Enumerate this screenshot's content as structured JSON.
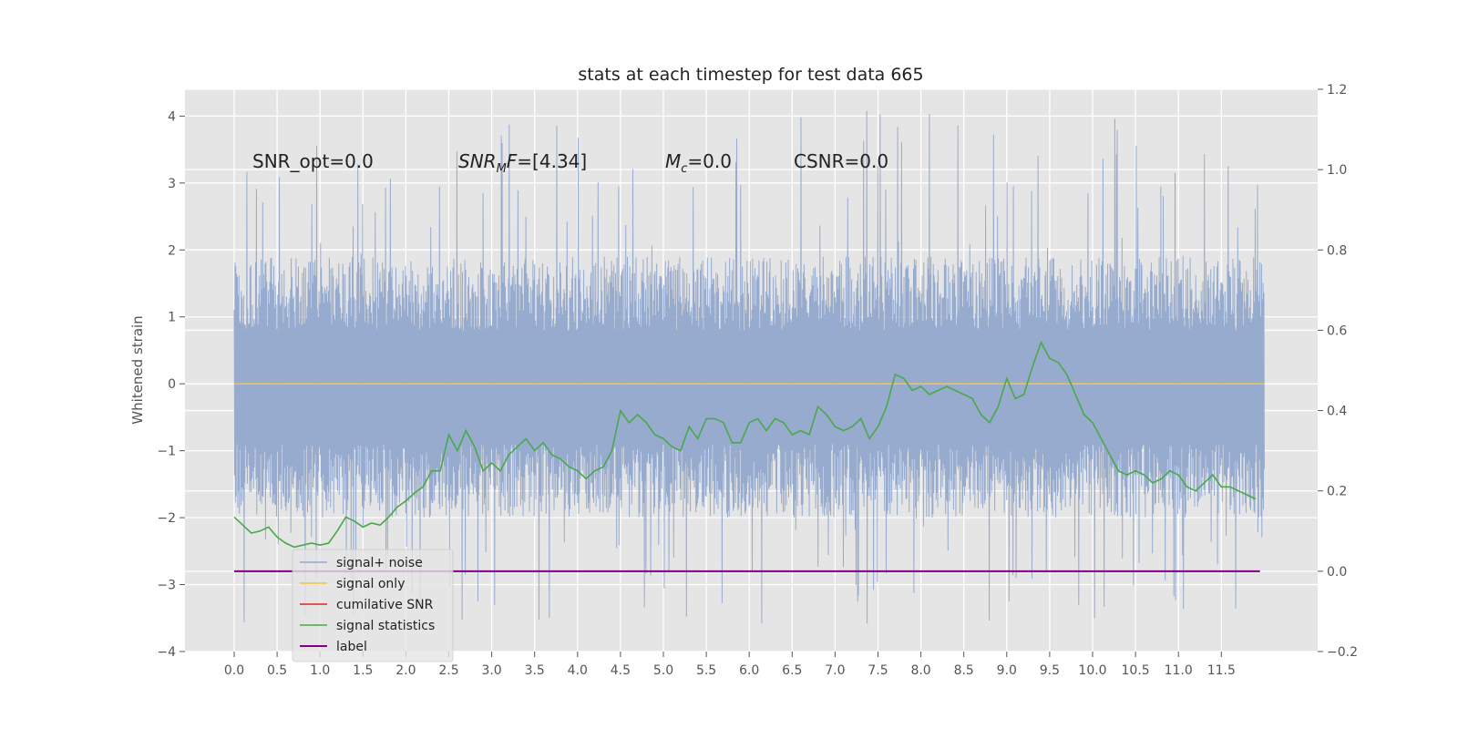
{
  "chart_data": {
    "type": "line",
    "title": "stats at each timestep for test data 665",
    "ylabel": "Whitened strain",
    "y2label": "",
    "xlim": [
      -0.5,
      12.7
    ],
    "ylim": [
      -4.0,
      4.4
    ],
    "y2lim": [
      -0.2,
      1.2
    ],
    "x_ticks": [
      "0.0",
      "0.5",
      "1.0",
      "1.5",
      "2.0",
      "2.5",
      "3.0",
      "3.5",
      "4.0",
      "4.5",
      "5.0",
      "5.5",
      "6.0",
      "6.5",
      "7.0",
      "7.5",
      "8.0",
      "8.5",
      "9.0",
      "9.5",
      "10.0",
      "10.5",
      "11.0",
      "11.5"
    ],
    "y_ticks": [
      "4",
      "3",
      "2",
      "1",
      "0",
      "−1",
      "−2",
      "−3",
      "−4"
    ],
    "y2_ticks": [
      "1.2",
      "1.0",
      "0.8",
      "0.6",
      "0.4",
      "0.2",
      "0.0",
      "−0.2"
    ],
    "grid": true,
    "legend_position": "lower-left",
    "annotations": [
      {
        "text": "SNR_opt=0.0",
        "math": false
      },
      {
        "base": "SNR",
        "sub": "M",
        "rest": "F=[4.34]",
        "math": true
      },
      {
        "base": "M",
        "sub": "c",
        "rest": "=0.0",
        "math": true
      },
      {
        "text": "CSNR=0.0",
        "math": false
      }
    ],
    "series": [
      {
        "name": "signal+ noise",
        "color": "#92a8cd",
        "axis": "left",
        "kind": "noise",
        "x_range": [
          0.0,
          12.0
        ],
        "band": [
          -2.0,
          1.9
        ],
        "spike_max": 4.1,
        "spike_min": -3.6
      },
      {
        "name": "signal only",
        "color": "#f5c242",
        "axis": "left",
        "x": [
          0.0,
          12.0
        ],
        "values": [
          0.0,
          0.0
        ]
      },
      {
        "name": "cumilative SNR",
        "color": "#d62728",
        "axis": "right",
        "x": [],
        "values": []
      },
      {
        "name": "signal statistics",
        "color": "#4aa84a",
        "axis": "right",
        "x": [
          0.0,
          0.1,
          0.2,
          0.3,
          0.4,
          0.5,
          0.6,
          0.7,
          0.8,
          0.9,
          1.0,
          1.1,
          1.2,
          1.3,
          1.4,
          1.5,
          1.6,
          1.7,
          1.8,
          1.9,
          2.0,
          2.1,
          2.2,
          2.3,
          2.4,
          2.5,
          2.6,
          2.7,
          2.8,
          2.9,
          3.0,
          3.1,
          3.2,
          3.3,
          3.4,
          3.5,
          3.6,
          3.7,
          3.8,
          3.9,
          4.0,
          4.1,
          4.2,
          4.3,
          4.4,
          4.5,
          4.6,
          4.7,
          4.8,
          4.9,
          5.0,
          5.1,
          5.2,
          5.3,
          5.4,
          5.5,
          5.6,
          5.7,
          5.8,
          5.9,
          6.0,
          6.1,
          6.2,
          6.3,
          6.4,
          6.5,
          6.6,
          6.7,
          6.8,
          6.9,
          7.0,
          7.1,
          7.2,
          7.3,
          7.4,
          7.5,
          7.6,
          7.7,
          7.8,
          7.9,
          8.0,
          8.1,
          8.2,
          8.3,
          8.4,
          8.5,
          8.6,
          8.7,
          8.8,
          8.9,
          9.0,
          9.1,
          9.2,
          9.3,
          9.4,
          9.5,
          9.6,
          9.7,
          9.8,
          9.9,
          10.0,
          10.1,
          10.2,
          10.3,
          10.4,
          10.5,
          10.6,
          10.7,
          10.8,
          10.9,
          11.0,
          11.1,
          11.2,
          11.3,
          11.4,
          11.5,
          11.6,
          11.7,
          11.8,
          11.9
        ],
        "values": [
          0.135,
          0.115,
          0.095,
          0.1,
          0.11,
          0.085,
          0.07,
          0.06,
          0.065,
          0.07,
          0.065,
          0.07,
          0.1,
          0.135,
          0.125,
          0.11,
          0.12,
          0.115,
          0.135,
          0.16,
          0.175,
          0.195,
          0.21,
          0.25,
          0.25,
          0.34,
          0.3,
          0.35,
          0.31,
          0.25,
          0.27,
          0.25,
          0.29,
          0.31,
          0.33,
          0.3,
          0.32,
          0.29,
          0.28,
          0.26,
          0.25,
          0.23,
          0.25,
          0.26,
          0.3,
          0.4,
          0.37,
          0.39,
          0.37,
          0.34,
          0.33,
          0.31,
          0.3,
          0.36,
          0.33,
          0.38,
          0.38,
          0.37,
          0.32,
          0.32,
          0.37,
          0.38,
          0.35,
          0.38,
          0.37,
          0.34,
          0.35,
          0.34,
          0.41,
          0.39,
          0.36,
          0.35,
          0.36,
          0.38,
          0.33,
          0.36,
          0.41,
          0.49,
          0.48,
          0.45,
          0.46,
          0.44,
          0.45,
          0.46,
          0.45,
          0.44,
          0.43,
          0.39,
          0.37,
          0.41,
          0.48,
          0.43,
          0.44,
          0.51,
          0.57,
          0.53,
          0.52,
          0.49,
          0.44,
          0.39,
          0.37,
          0.33,
          0.29,
          0.25,
          0.24,
          0.25,
          0.24,
          0.22,
          0.23,
          0.25,
          0.24,
          0.21,
          0.2,
          0.22,
          0.24,
          0.21,
          0.21,
          0.2,
          0.19,
          0.18
        ],
        "note": ""
      },
      {
        "name": "label",
        "color": "#800080",
        "axis": "right",
        "x": [
          0.0,
          11.95
        ],
        "values": [
          0.0,
          0.0
        ]
      }
    ]
  },
  "legend": {
    "items": [
      {
        "label": "signal+ noise",
        "color": "#92a8cd"
      },
      {
        "label": "signal only",
        "color": "#f5c242"
      },
      {
        "label": "cumilative SNR",
        "color": "#d62728"
      },
      {
        "label": "signal statistics",
        "color": "#4aa84a"
      },
      {
        "label": "label",
        "color": "#800080"
      }
    ]
  },
  "colors": {
    "plot_background": "#e5e5e5",
    "grid": "#ffffff",
    "text": "#555555"
  }
}
